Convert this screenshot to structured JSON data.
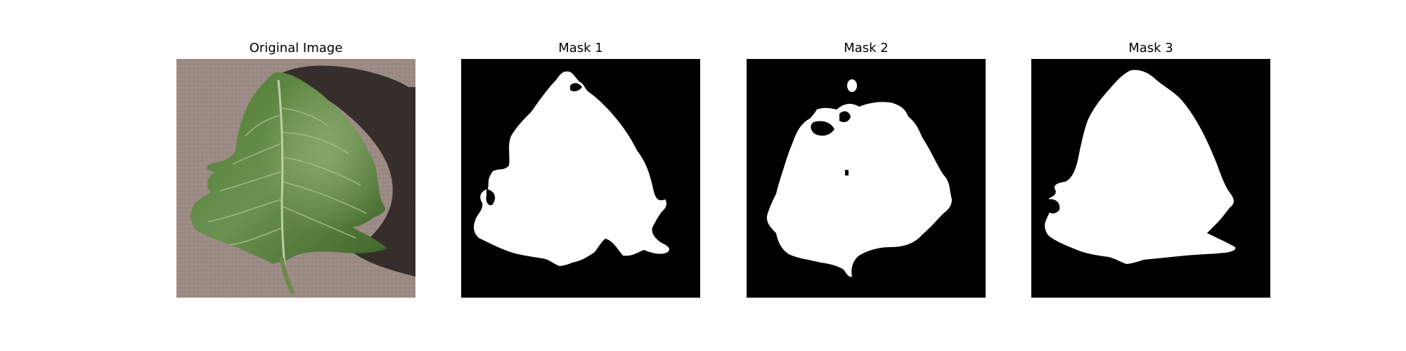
{
  "figure": {
    "panels": [
      {
        "title": "Original Image",
        "kind": "photo",
        "subject": "green leaf on cardboard"
      },
      {
        "title": "Mask 1",
        "kind": "mask"
      },
      {
        "title": "Mask 2",
        "kind": "mask"
      },
      {
        "title": "Mask 3",
        "kind": "mask"
      }
    ]
  },
  "colors": {
    "background": "#ffffff",
    "mask_background": "#000000",
    "mask_foreground": "#ffffff",
    "cardboard": "#9c8b85",
    "cardboard_dark": "#7c6d68",
    "shadow": "#2d2624",
    "leaf_dark": "#3e6428",
    "leaf_mid": "#5f8a42",
    "leaf_light": "#8aa96a",
    "leaf_vein": "#bfcfa5"
  }
}
